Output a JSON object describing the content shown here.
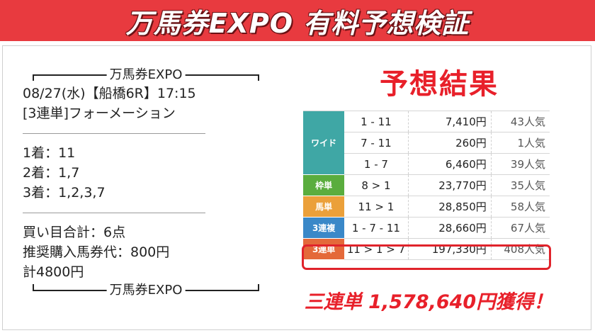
{
  "banner": {
    "title": "万馬券EXPO 有料予想検証"
  },
  "left": {
    "header_label": "万馬券EXPO",
    "race_line": "08/27(水)【船橋6R】17:15",
    "bet_type_line": "[3連単]フォーメーション",
    "picks": [
      "1着：11",
      "2着：1,7",
      "3着：1,2,3,7"
    ],
    "total_points": "買い目合計：6点",
    "recommended_cost": "推奨購入馬券代：800円",
    "total_cost": "計4800円",
    "footer_label": "万馬券EXPO"
  },
  "result": {
    "title": "予想結果",
    "rows": [
      {
        "bet_type": "ワイド",
        "color": "#3fa7a5",
        "lines": [
          {
            "combo": "1 - 11",
            "payout": "7,410円",
            "popularity": "43人気"
          },
          {
            "combo": "7 - 11",
            "payout": "260円",
            "popularity": "1人気"
          },
          {
            "combo": "1 - 7",
            "payout": "6,460円",
            "popularity": "39人気"
          }
        ]
      },
      {
        "bet_type": "枠単",
        "color": "#5aad3e",
        "combo": "8 > 1",
        "payout": "23,770円",
        "popularity": "35人気"
      },
      {
        "bet_type": "馬単",
        "color": "#eba03a",
        "combo": "11 > 1",
        "payout": "28,850円",
        "popularity": "58人気"
      },
      {
        "bet_type": "3連複",
        "color": "#3a88c8",
        "combo": "1 - 7 - 11",
        "payout": "28,660円",
        "popularity": "67人気"
      },
      {
        "bet_type": "3連単",
        "color": "#e4693a",
        "combo": "11 > 1 > 7",
        "payout": "197,330円",
        "popularity": "408人気"
      }
    ],
    "earned_text": "三連単 1,578,640円獲得！"
  },
  "colors": {
    "accent": "#e8202a",
    "banner": "#e83a3f"
  }
}
